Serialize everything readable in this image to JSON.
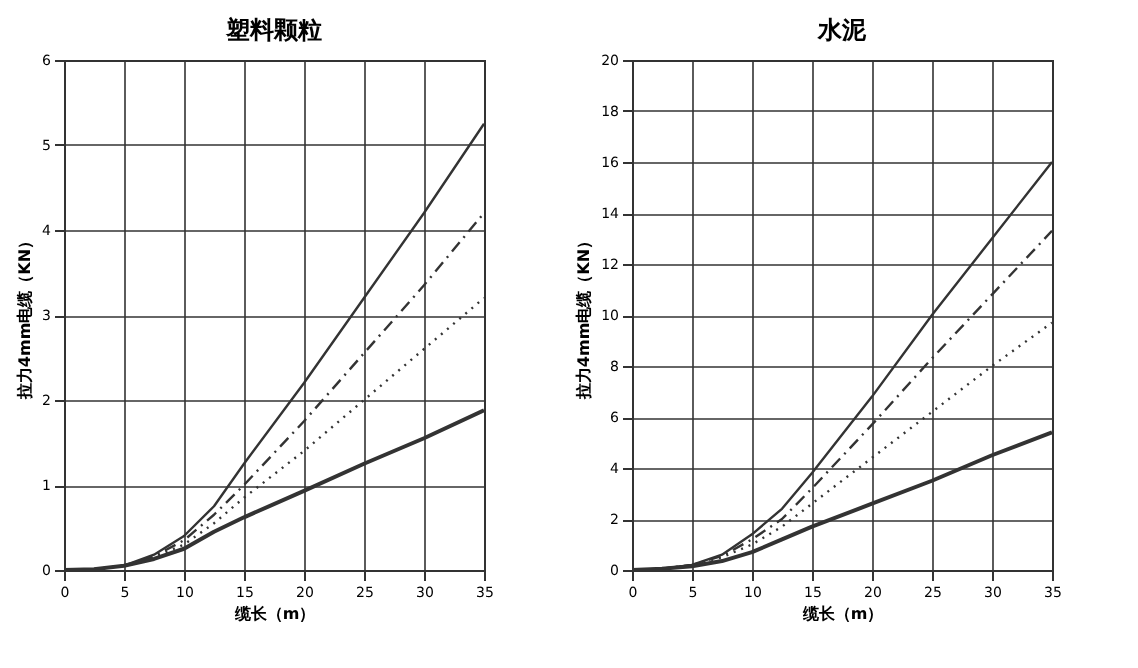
{
  "chart_data": [
    {
      "type": "line",
      "title": "塑料颗粒",
      "xlabel": "缆长（m）",
      "ylabel": "拉力4mm电缆（KN）",
      "xlim": [
        0,
        35
      ],
      "xticks": [
        0,
        5,
        10,
        15,
        20,
        25,
        30,
        35
      ],
      "ylim": [
        0,
        6
      ],
      "yticks": [
        0,
        1,
        2,
        3,
        4,
        5,
        6
      ],
      "grid": true,
      "x": [
        0,
        2.5,
        5,
        7.5,
        10,
        12.5,
        15,
        20,
        25,
        30,
        35
      ],
      "series": [
        {
          "color": "#333333",
          "line_style": "solid",
          "values": [
            0,
            0.01,
            0.05,
            0.18,
            0.4,
            0.75,
            1.25,
            2.2,
            3.2,
            4.2,
            5.25
          ]
        },
        {
          "color": "#333333",
          "line_style": "dashed",
          "values": [
            0,
            0.01,
            0.05,
            0.16,
            0.35,
            0.65,
            1.0,
            1.75,
            2.55,
            3.35,
            4.2
          ]
        },
        {
          "color": "#333333",
          "line_style": "dotted",
          "values": [
            0,
            0.01,
            0.05,
            0.15,
            0.3,
            0.55,
            0.85,
            1.4,
            2.0,
            2.6,
            3.2
          ]
        },
        {
          "color": "#333333",
          "line_style": "solid",
          "values": [
            0,
            0.01,
            0.05,
            0.13,
            0.25,
            0.45,
            0.62,
            0.93,
            1.25,
            1.55,
            1.88
          ]
        }
      ]
    },
    {
      "type": "line",
      "title": "水泥",
      "xlabel": "缆长（m）",
      "ylabel": "拉力4mm电缆（KN）",
      "xlim": [
        0,
        35
      ],
      "xticks": [
        0,
        5,
        10,
        15,
        20,
        25,
        30,
        35
      ],
      "ylim": [
        0,
        20
      ],
      "yticks": [
        0,
        2,
        4,
        6,
        8,
        10,
        12,
        14,
        16,
        18,
        20
      ],
      "grid": true,
      "x": [
        0,
        2.5,
        5,
        7.5,
        10,
        12.5,
        15,
        20,
        25,
        30,
        35
      ],
      "series": [
        {
          "color": "#333333",
          "line_style": "solid",
          "values": [
            0,
            0.05,
            0.2,
            0.6,
            1.4,
            2.4,
            3.8,
            6.8,
            10,
            13,
            16
          ]
        },
        {
          "color": "#333333",
          "line_style": "dashed",
          "values": [
            0,
            0.05,
            0.2,
            0.55,
            1.2,
            2.0,
            3.2,
            5.7,
            8.3,
            10.8,
            13.3
          ]
        },
        {
          "color": "#333333",
          "line_style": "dotted",
          "values": [
            0,
            0.05,
            0.2,
            0.5,
            1.0,
            1.7,
            2.6,
            4.4,
            6.2,
            8.0,
            9.7
          ]
        },
        {
          "color": "#333333",
          "line_style": "solid",
          "values": [
            0,
            0.05,
            0.15,
            0.35,
            0.7,
            1.2,
            1.7,
            2.6,
            3.5,
            4.5,
            5.4
          ]
        }
      ]
    }
  ]
}
